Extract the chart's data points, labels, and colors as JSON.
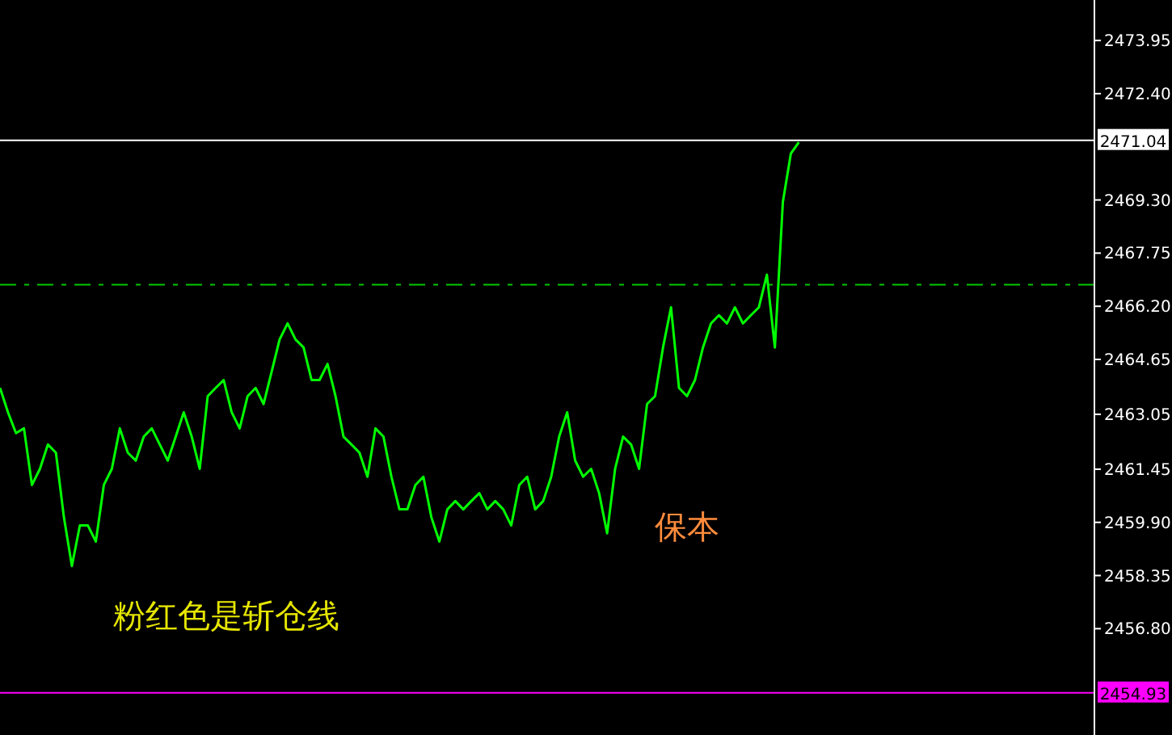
{
  "chart_data": {
    "type": "line",
    "categories": [
      null,
      null,
      null,
      null,
      null,
      null,
      null,
      null,
      null,
      null,
      null,
      null,
      null,
      null,
      null,
      null,
      null,
      null,
      null,
      null,
      null,
      null,
      null,
      null,
      null,
      null,
      null,
      null,
      null,
      null,
      null,
      null,
      null,
      null,
      null,
      null,
      null,
      null,
      null,
      null,
      null,
      null,
      null,
      null,
      null,
      null,
      null,
      null,
      null,
      null,
      null,
      null,
      null,
      null,
      null,
      null,
      null,
      null,
      null,
      null,
      null,
      null,
      null,
      null,
      null,
      null,
      null,
      null,
      null,
      null,
      null,
      null,
      null,
      null,
      null,
      null,
      null,
      null,
      null,
      null,
      null,
      null,
      null,
      null,
      null,
      null,
      null,
      null,
      null,
      null,
      null,
      null,
      null,
      null,
      null,
      null,
      null,
      null,
      null,
      null,
      null
    ],
    "series": [
      {
        "color": "#00ff00",
        "values": [
          2463.82,
          2463.11,
          2462.5,
          2462.64,
          2460.99,
          2461.46,
          2462.17,
          2461.93,
          2460.05,
          2458.63,
          2459.81,
          2459.81,
          2459.34,
          2460.99,
          2461.46,
          2462.64,
          2461.93,
          2461.7,
          2462.4,
          2462.64,
          2462.17,
          2461.7,
          2462.4,
          2463.11,
          2462.4,
          2461.46,
          2463.58,
          2463.82,
          2464.05,
          2463.11,
          2462.64,
          2463.58,
          2463.82,
          2463.35,
          2464.29,
          2465.23,
          2465.7,
          2465.23,
          2465.0,
          2464.05,
          2464.05,
          2464.52,
          2463.58,
          2462.4,
          2462.17,
          2461.93,
          2461.23,
          2462.64,
          2462.4,
          2461.23,
          2460.28,
          2460.28,
          2460.99,
          2461.23,
          2460.05,
          2459.34,
          2460.28,
          2460.52,
          2460.28,
          2460.52,
          2460.75,
          2460.28,
          2460.52,
          2460.28,
          2459.81,
          2460.99,
          2461.23,
          2460.28,
          2460.52,
          2461.23,
          2462.4,
          2463.11,
          2461.7,
          2461.23,
          2461.46,
          2460.75,
          2459.58,
          2461.46,
          2462.4,
          2462.17,
          2461.46,
          2463.35,
          2463.58,
          2465.0,
          2466.17,
          2463.82,
          2463.58,
          2464.05,
          2465.0,
          2465.7,
          2465.94,
          2465.7,
          2466.17,
          2465.7,
          2465.94,
          2466.17,
          2467.12,
          2465.0,
          2469.24,
          2470.65,
          2470.98
        ]
      }
    ],
    "ylim": [
      2453.7,
      2475.13
    ],
    "yticks": [
      2473.95,
      {
        "value": 2472.4,
        "label": "2472.40"
      },
      {
        "value": 2469.3,
        "label": "2469.30"
      },
      2467.75,
      {
        "value": 2466.2,
        "label": "2466.20"
      },
      2464.65,
      2463.05,
      2461.45,
      {
        "value": 2459.9,
        "label": "2459.90"
      },
      2458.35,
      {
        "value": 2456.8,
        "label": "2456.80"
      }
    ],
    "marker": "none",
    "line_style": "solid",
    "ref_lines": [
      {
        "axis": "y",
        "value": 2471.04,
        "label": "2471.04",
        "color": "#ffffff"
      },
      {
        "axis": "y",
        "value": 2454.93,
        "label": "2454.93",
        "color": "#ff00ff"
      },
      {
        "axis": "y",
        "value": 2466.83,
        "color": "#00c800",
        "line_style": "dashed"
      }
    ],
    "annotations": [
      "保本",
      "粉红色是斩仓线"
    ]
  }
}
